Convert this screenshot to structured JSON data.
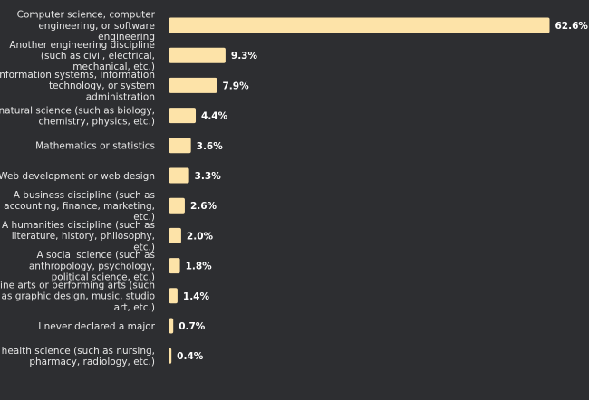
{
  "chart_data": {
    "type": "bar",
    "orientation": "horizontal",
    "categories": [
      "Computer science, computer engineering, or software engineering",
      "Another engineering discipline (such as civil, electrical, mechanical, etc.)",
      "Information systems, information technology, or system administration",
      "A natural science (such as biology, chemistry, physics, etc.)",
      "Mathematics or statistics",
      "Web development or web design",
      "A business discipline (such as accounting, finance, marketing, etc.)",
      "A humanities discipline (such as literature, history, philosophy, etc.)",
      "A social science (such as anthropology, psychology, political science, etc.)",
      "Fine arts or performing arts (such as graphic design, music, studio art, etc.)",
      "I never declared a major",
      "A health science (such as nursing, pharmacy, radiology, etc.)"
    ],
    "category_lines": [
      [
        "Computer science, computer",
        "engineering, or software",
        "engineering"
      ],
      [
        "Another engineering discipline",
        "(such as civil, electrical,",
        "mechanical, etc.)"
      ],
      [
        "Information systems, information",
        "technology, or system",
        "administration"
      ],
      [
        "A natural science (such as biology,",
        "chemistry, physics, etc.)"
      ],
      [
        "Mathematics or statistics"
      ],
      [
        "Web development or web design"
      ],
      [
        "A business discipline (such as",
        "accounting, finance, marketing,",
        "etc.)"
      ],
      [
        "A humanities discipline (such as",
        "literature, history, philosophy,",
        "etc.)"
      ],
      [
        "A social science (such as",
        "anthropology, psychology,",
        "political science, etc.)"
      ],
      [
        "Fine arts or performing arts (such",
        "as graphic design, music, studio",
        "art, etc.)"
      ],
      [
        "I never declared a major"
      ],
      [
        "A health science (such as nursing,",
        "pharmacy, radiology, etc.)"
      ]
    ],
    "values": [
      62.6,
      9.3,
      7.9,
      4.4,
      3.6,
      3.3,
      2.6,
      2.0,
      1.8,
      1.4,
      0.7,
      0.4
    ],
    "value_labels": [
      "62.6%",
      "9.3%",
      "7.9%",
      "4.4%",
      "3.6%",
      "3.3%",
      "2.6%",
      "2.0%",
      "1.8%",
      "1.4%",
      "0.7%",
      "0.4%"
    ],
    "unit": "%",
    "xlim": [
      0,
      62.6
    ],
    "grid": false,
    "legend": "none",
    "bar_color": "#fde3a8",
    "background_color": "#2d2e31"
  }
}
